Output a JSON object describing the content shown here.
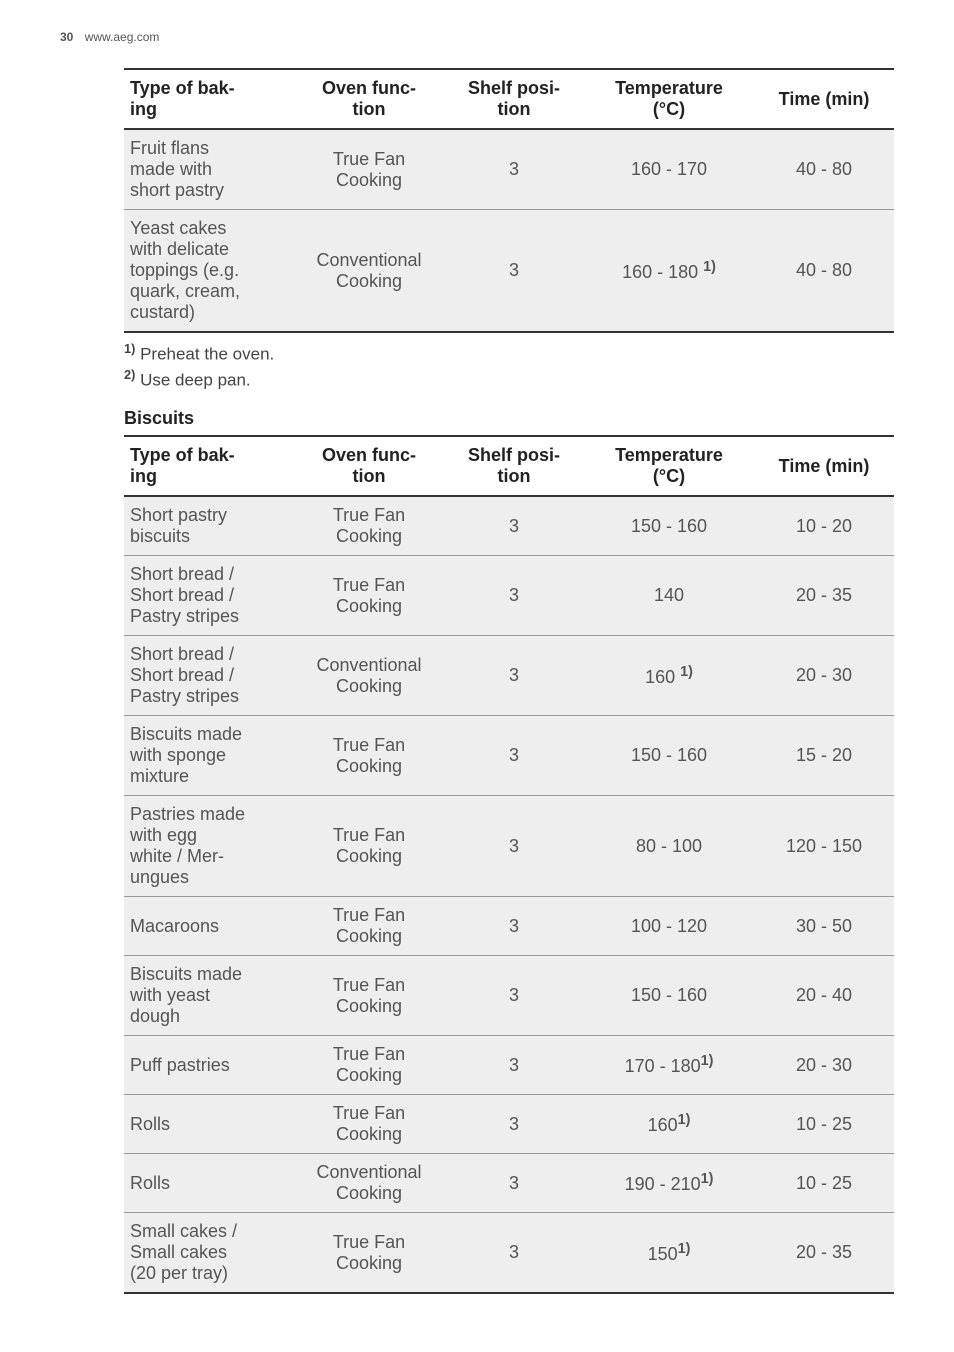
{
  "header": {
    "page_number": "30",
    "url": "www.aeg.com"
  },
  "table1": {
    "columns": [
      "Type of bak-\ning",
      "Oven func-\ntion",
      "Shelf posi-\ntion",
      "Temperature\n(°C)",
      "Time (min)"
    ],
    "rows": [
      {
        "c1": "Fruit flans\nmade with\nshort pastry",
        "c2": "True Fan\nCooking",
        "c3": "3",
        "c4": "160 - 170",
        "c4_fn": "",
        "c5": "40 - 80"
      },
      {
        "c1": "Yeast cakes\nwith delicate\ntoppings (e.g.\nquark, cream,\ncustard)",
        "c2": "Conventional\nCooking",
        "c3": "3",
        "c4": "160 - 180 ",
        "c4_fn": "1)",
        "c5": "40 - 80"
      }
    ],
    "footnotes": [
      {
        "mark": "1)",
        "text": " Preheat the oven."
      },
      {
        "mark": "2)",
        "text": " Use deep pan."
      }
    ]
  },
  "section2_title": "Biscuits",
  "table2": {
    "columns": [
      "Type of bak-\ning",
      "Oven func-\ntion",
      "Shelf posi-\ntion",
      "Temperature\n(°C)",
      "Time (min)"
    ],
    "rows": [
      {
        "c1": "Short pastry\nbiscuits",
        "c2": "True Fan\nCooking",
        "c3": "3",
        "c4": "150 - 160",
        "c4_fn": "",
        "c5": "10 - 20"
      },
      {
        "c1": "Short bread /\nShort bread /\nPastry stripes",
        "c2": "True Fan\nCooking",
        "c3": "3",
        "c4": "140",
        "c4_fn": "",
        "c5": "20 - 35"
      },
      {
        "c1": "Short bread /\nShort bread /\nPastry stripes",
        "c2": "Conventional\nCooking",
        "c3": "3",
        "c4": "160 ",
        "c4_fn": "1)",
        "c5": "20 - 30"
      },
      {
        "c1": "Biscuits made\nwith sponge\nmixture",
        "c2": "True Fan\nCooking",
        "c3": "3",
        "c4": "150 - 160",
        "c4_fn": "",
        "c5": "15 - 20"
      },
      {
        "c1": "Pastries made\nwith egg\nwhite / Mer-\nungues",
        "c2": "True Fan\nCooking",
        "c3": "3",
        "c4": "80 - 100",
        "c4_fn": "",
        "c5": "120 - 150"
      },
      {
        "c1": "Macaroons",
        "c2": "True Fan\nCooking",
        "c3": "3",
        "c4": "100 - 120",
        "c4_fn": "",
        "c5": "30 - 50"
      },
      {
        "c1": "Biscuits made\nwith yeast\ndough",
        "c2": "True Fan\nCooking",
        "c3": "3",
        "c4": "150 - 160",
        "c4_fn": "",
        "c5": "20 - 40"
      },
      {
        "c1": "Puff pastries",
        "c2": "True Fan\nCooking",
        "c3": "3",
        "c4": "170 - 180",
        "c4_fn": "1)",
        "c5": "20 - 30"
      },
      {
        "c1": "Rolls",
        "c2": "True Fan\nCooking",
        "c3": "3",
        "c4": "160",
        "c4_fn": "1)",
        "c5": "10 - 25"
      },
      {
        "c1": "Rolls",
        "c2": "Conventional\nCooking",
        "c3": "3",
        "c4": "190 - 210",
        "c4_fn": "1)",
        "c5": "10 - 25"
      },
      {
        "c1": "Small cakes /\nSmall cakes\n(20 per tray)",
        "c2": "True Fan\nCooking",
        "c3": "3",
        "c4": "150",
        "c4_fn": "1)",
        "c5": "20 - 35"
      }
    ]
  }
}
